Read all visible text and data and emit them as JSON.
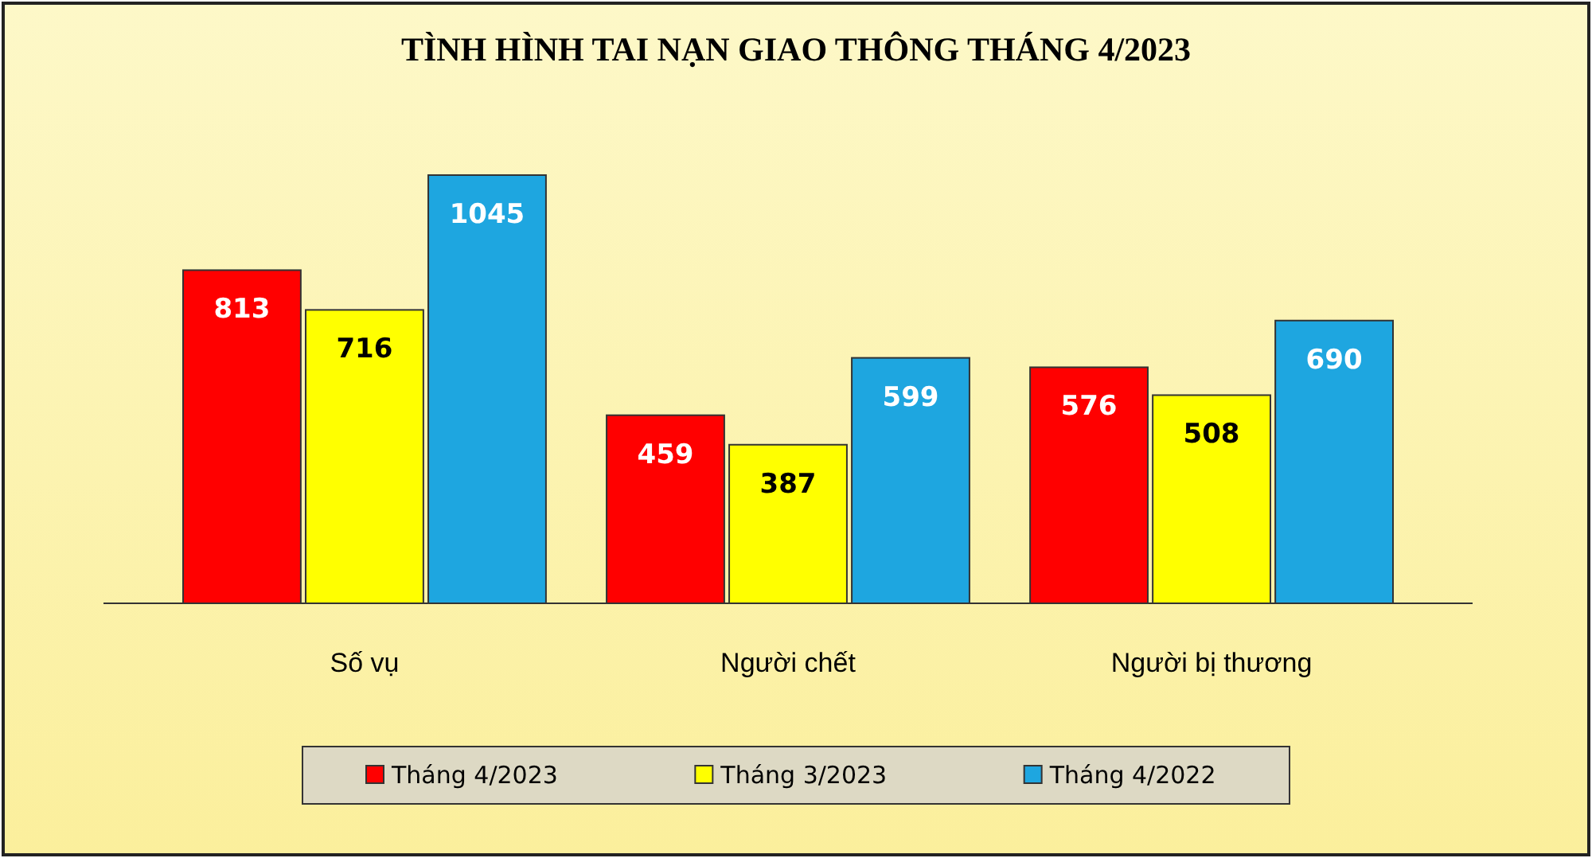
{
  "chart_data": {
    "type": "bar",
    "title": "TÌNH HÌNH TAI NẠN GIAO THÔNG THÁNG 4/2023",
    "categories": [
      "Số vụ",
      "Người chết",
      "Người bị thương"
    ],
    "series": [
      {
        "name": "Tháng 4/2023",
        "color": "#ff0000",
        "values": [
          813,
          459,
          576
        ]
      },
      {
        "name": "Tháng 3/2023",
        "color": "#ffff00",
        "values": [
          716,
          387,
          508
        ]
      },
      {
        "name": "Tháng 4/2022",
        "color": "#1ea6e0",
        "values": [
          1045,
          599,
          690
        ]
      }
    ],
    "data_labels": true,
    "legend": "bottom"
  }
}
